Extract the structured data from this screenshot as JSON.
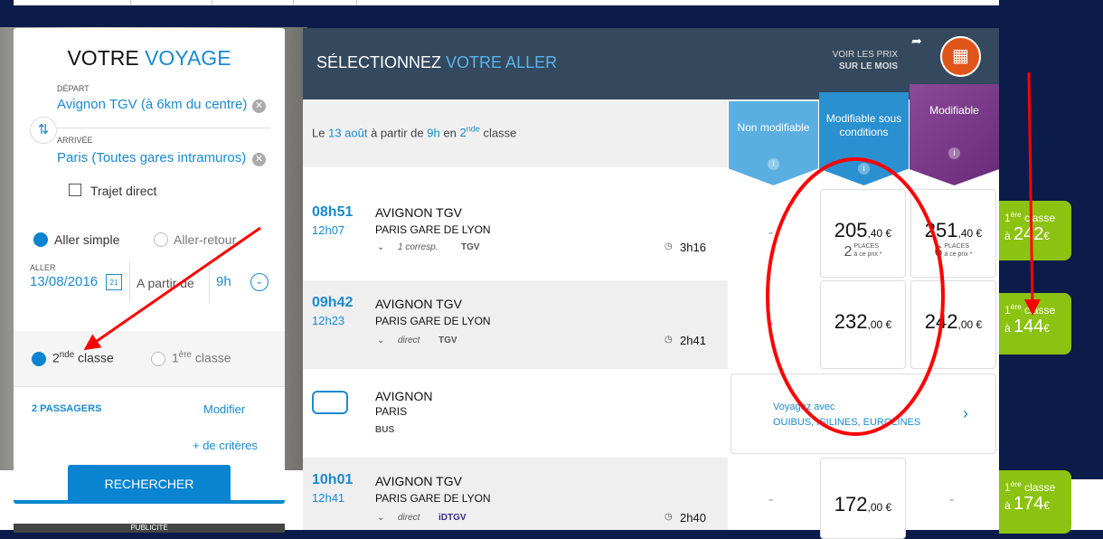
{
  "search": {
    "title_a": "VOTRE",
    "title_b": "VOYAGE",
    "depart_label": "DÉPART",
    "depart_value": "Avignon TGV (à 6km du centre)",
    "arrivee_label": "ARRIVÉE",
    "arrivee_value": "Paris (Toutes gares intramuros)",
    "direct_label": "Trajet direct",
    "aller_simple": "Aller simple",
    "aller_retour": "Aller-retour",
    "aller_label": "ALLER",
    "date": "13/08/2016",
    "a_partir": "A partir de",
    "hour": "9h",
    "class2_num": "2",
    "class2_sup": "nde",
    "class2_txt": "classe",
    "class1_num": "1",
    "class1_sup": "ère",
    "class1_txt": "classe",
    "passengers": "2 PASSAGERS",
    "modify": "Modifier",
    "more": "+ de critères",
    "search_btn": "RECHERCHER",
    "ad": "PUBLICITÉ"
  },
  "results": {
    "title_a": "SÉLECTIONNEZ",
    "title_b": "VOTRE ALLER",
    "month_a": "VOIR LES PRIX",
    "month_b": "SUR LE MOIS",
    "info": {
      "le": "Le",
      "date": "13 août",
      "apartir": "à partir de",
      "hour": "9h",
      "en": "en",
      "cls": "2",
      "sup": "nde",
      "classe": "classe"
    },
    "columns": [
      "Non modifiable",
      "Modifiable sous conditions",
      "Modifiable"
    ],
    "rows": [
      {
        "dep": "08h51",
        "arr": "12h07",
        "from": "AVIGNON TGV",
        "to": "PARIS GARE DE LYON",
        "conn": "1 corresp.",
        "type": "TGV",
        "dur": "3h16",
        "p1": "-",
        "p2": "205",
        "p2c": ",40 €",
        "p2seats": "2",
        "p3": "251",
        "p3c": ",40 €",
        "p3seats": "6",
        "places": "PLACES",
        "ceprix": "à ce prix *"
      },
      {
        "dep": "09h42",
        "arr": "12h23",
        "from": "AVIGNON TGV",
        "to": "PARIS GARE DE LYON",
        "conn": "direct",
        "type": "TGV",
        "dur": "2h41",
        "p1": "-",
        "p2": "232",
        "p2c": ",00 €",
        "p3": "242",
        "p3c": ",00 €"
      },
      {
        "from": "AVIGNON",
        "to": "PARIS",
        "type": "BUS",
        "bus_a": "Voyagez avec",
        "bus_b": "OUIBUS, ISILINES, EUROLINES"
      },
      {
        "dep": "10h01",
        "arr": "12h41",
        "from": "AVIGNON TGV",
        "to": "PARIS GARE DE LYON",
        "conn": "direct",
        "type": "iDTGV",
        "dur": "2h40",
        "p1": "-",
        "p2": "172",
        "p2c": ",00 €",
        "p3": "-"
      }
    ],
    "first": [
      {
        "a": "1",
        "sup": "ère",
        "cls": "classe",
        "pre": "à",
        "val": "242",
        "cur": "€"
      },
      {
        "a": "1",
        "sup": "ère",
        "cls": "classe",
        "pre": "à",
        "val": "144",
        "cur": "€"
      },
      {
        "a": "1",
        "sup": "ère",
        "cls": "classe",
        "pre": "à",
        "val": "174",
        "cur": "€"
      }
    ]
  },
  "colors": {
    "accent": "#1a8ad0",
    "header": "#34495e",
    "green": "#8cc211",
    "purple": "#7b3a8a",
    "annotation": "#ff0000"
  }
}
